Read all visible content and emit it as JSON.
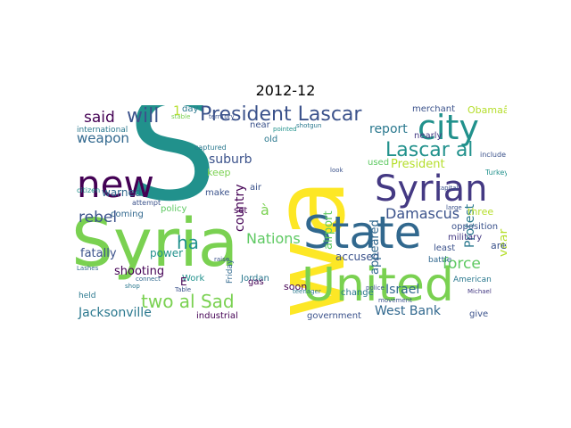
{
  "title": "2012-12",
  "words": [
    {
      "text": "S",
      "color": "#21918c"
    },
    {
      "text": "wa",
      "color": "#fde725"
    },
    {
      "text": "Syria",
      "color": "#7ad151"
    },
    {
      "text": "United",
      "color": "#7ad151"
    },
    {
      "text": "State",
      "color": "#31688e"
    },
    {
      "text": "Syrian",
      "color": "#443983"
    },
    {
      "text": "new",
      "color": "#440154"
    },
    {
      "text": "city",
      "color": "#21918c"
    },
    {
      "text": "President Lascar",
      "color": "#3b528b"
    },
    {
      "text": "Lascar al",
      "color": "#21918c"
    },
    {
      "text": "will",
      "color": "#3b528b"
    },
    {
      "text": "weapon",
      "color": "#31688e"
    },
    {
      "text": "said",
      "color": "#440154"
    },
    {
      "text": "rebel",
      "color": "#3b528b"
    },
    {
      "text": "warned",
      "color": "#31688e"
    },
    {
      "text": "ha",
      "color": "#21918c"
    },
    {
      "text": "two al Sad",
      "color": "#7ad151"
    },
    {
      "text": "Jacksonville",
      "color": "#2a788e"
    },
    {
      "text": "West Bank",
      "color": "#31688e"
    },
    {
      "text": "Damascus",
      "color": "#3b528b"
    },
    {
      "text": "report",
      "color": "#2a788e"
    },
    {
      "text": "President",
      "color": "#b5de2b"
    },
    {
      "text": "Nations",
      "color": "#5ec962"
    },
    {
      "text": "country",
      "color": "#440154"
    },
    {
      "text": "suburb",
      "color": "#3b528b"
    },
    {
      "text": "power",
      "color": "#21918c"
    },
    {
      "text": "shooting",
      "color": "#440154"
    },
    {
      "text": "fatally",
      "color": "#3b528b"
    },
    {
      "text": "force",
      "color": "#5ec962"
    },
    {
      "text": "Protest",
      "color": "#2a788e"
    },
    {
      "text": "year",
      "color": "#b5de2b"
    },
    {
      "text": "Israel",
      "color": "#31688e"
    },
    {
      "text": "accused",
      "color": "#3b528b"
    },
    {
      "text": "appeared",
      "color": "#31688e"
    },
    {
      "text": "airport",
      "color": "#5ec962"
    },
    {
      "text": "government",
      "color": "#3b528b"
    },
    {
      "text": "industrial",
      "color": "#440154"
    },
    {
      "text": "Jordan",
      "color": "#2a788e"
    },
    {
      "text": "keep",
      "color": "#7ad151"
    },
    {
      "text": "soon",
      "color": "#440154"
    },
    {
      "text": "three",
      "color": "#b5de2b"
    },
    {
      "text": "used",
      "color": "#5ec962"
    },
    {
      "text": "nearly",
      "color": "#443983"
    },
    {
      "text": "merchant",
      "color": "#3b528b"
    },
    {
      "text": "Obamaâ",
      "color": "#b5de2b"
    },
    {
      "text": "area",
      "color": "#3b528b"
    },
    {
      "text": "coming",
      "color": "#31688e"
    },
    {
      "text": "policy",
      "color": "#5ec962"
    },
    {
      "text": "make",
      "color": "#3b528b"
    },
    {
      "text": "held",
      "color": "#2a788e"
    },
    {
      "text": "Work",
      "color": "#21918c"
    },
    {
      "text": "gas",
      "color": "#440154"
    },
    {
      "text": "change",
      "color": "#2a788e"
    },
    {
      "text": "give",
      "color": "#3b528b"
    },
    {
      "text": "least",
      "color": "#3b528b"
    },
    {
      "text": "military",
      "color": "#443983"
    },
    {
      "text": "opposition",
      "color": "#3b528b"
    },
    {
      "text": "battle",
      "color": "#31688e"
    },
    {
      "text": "American",
      "color": "#2a788e"
    },
    {
      "text": "Friday",
      "color": "#31688e"
    },
    {
      "text": "set",
      "color": "#440154"
    },
    {
      "text": "air",
      "color": "#3b528b"
    },
    {
      "text": "near",
      "color": "#3b528b"
    },
    {
      "text": "old",
      "color": "#2a788e"
    },
    {
      "text": "day",
      "color": "#2a788e"
    },
    {
      "text": "international",
      "color": "#2a788e"
    },
    {
      "text": "citizen",
      "color": "#21918c"
    },
    {
      "text": "captured",
      "color": "#2a788e"
    },
    {
      "text": "attempt",
      "color": "#3b528b"
    },
    {
      "text": "include",
      "color": "#3b528b"
    },
    {
      "text": "Turkey",
      "color": "#21918c"
    },
    {
      "text": "Michael",
      "color": "#443983"
    },
    {
      "text": "movement",
      "color": "#3b528b"
    },
    {
      "text": "police",
      "color": "#3b528b"
    },
    {
      "text": "teenager",
      "color": "#2a788e"
    },
    {
      "text": "E",
      "color": "#440154"
    },
    {
      "text": "à",
      "color": "#7ad151"
    },
    {
      "text": "1",
      "color": "#b5de2b"
    },
    {
      "text": "Lashes",
      "color": "#31688e"
    },
    {
      "text": "Table",
      "color": "#3b528b"
    },
    {
      "text": "raise",
      "color": "#3b528b"
    },
    {
      "text": "connect",
      "color": "#31688e"
    },
    {
      "text": "shop",
      "color": "#2a788e"
    },
    {
      "text": "stable",
      "color": "#7ad151"
    },
    {
      "text": "territory",
      "color": "#3b528b"
    },
    {
      "text": "shotgun",
      "color": "#2a788e"
    },
    {
      "text": "pointed",
      "color": "#21918c"
    },
    {
      "text": "look",
      "color": "#3b528b"
    },
    {
      "text": "capital",
      "color": "#3b528b"
    },
    {
      "text": "large",
      "color": "#3b528b"
    }
  ]
}
